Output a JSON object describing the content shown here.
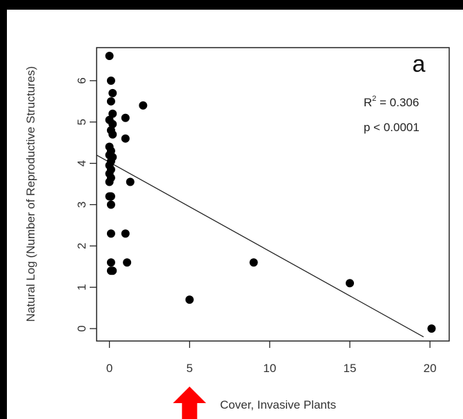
{
  "chart_data": {
    "type": "scatter",
    "panel_label": "a",
    "xlabel": "Cover, Invasive Plants",
    "ylabel": "Natural Log (Number of Reproductive Structures)",
    "xlim": [
      -0.8,
      21.2
    ],
    "ylim": [
      -0.3,
      6.8
    ],
    "x_ticks": [
      0,
      5,
      10,
      15,
      20
    ],
    "y_ticks": [
      0,
      1,
      2,
      3,
      4,
      5,
      6
    ],
    "annotation": {
      "r2_prefix": "R",
      "r2_sup": "2",
      "r2_value": " = 0.306",
      "p_text": "p < 0.0001"
    },
    "fit_line": {
      "x": [
        -0.8,
        19.6
      ],
      "y": [
        4.2,
        -0.2
      ]
    },
    "points": [
      {
        "x": 0.0,
        "y": 6.6
      },
      {
        "x": 0.1,
        "y": 6.0
      },
      {
        "x": 0.2,
        "y": 5.7
      },
      {
        "x": 0.1,
        "y": 5.5
      },
      {
        "x": 0.2,
        "y": 5.2
      },
      {
        "x": 0.0,
        "y": 5.05
      },
      {
        "x": 0.2,
        "y": 4.95
      },
      {
        "x": 0.1,
        "y": 4.8
      },
      {
        "x": 0.2,
        "y": 4.7
      },
      {
        "x": 0.0,
        "y": 4.4
      },
      {
        "x": 0.1,
        "y": 4.3
      },
      {
        "x": 0.0,
        "y": 4.2
      },
      {
        "x": 0.2,
        "y": 4.15
      },
      {
        "x": 0.1,
        "y": 4.05
      },
      {
        "x": 0.0,
        "y": 3.95
      },
      {
        "x": 0.1,
        "y": 3.85
      },
      {
        "x": 0.0,
        "y": 3.75
      },
      {
        "x": 0.1,
        "y": 3.65
      },
      {
        "x": 0.0,
        "y": 3.55
      },
      {
        "x": 0.0,
        "y": 3.2
      },
      {
        "x": 0.1,
        "y": 3.2
      },
      {
        "x": 0.1,
        "y": 3.0
      },
      {
        "x": 0.1,
        "y": 2.3
      },
      {
        "x": 0.1,
        "y": 1.6
      },
      {
        "x": 0.1,
        "y": 1.4
      },
      {
        "x": 0.2,
        "y": 1.4
      },
      {
        "x": 1.0,
        "y": 5.1
      },
      {
        "x": 2.1,
        "y": 5.4
      },
      {
        "x": 1.0,
        "y": 4.6
      },
      {
        "x": 1.3,
        "y": 3.55
      },
      {
        "x": 1.0,
        "y": 2.3
      },
      {
        "x": 1.1,
        "y": 1.6
      },
      {
        "x": 5.0,
        "y": 0.7
      },
      {
        "x": 9.0,
        "y": 1.6
      },
      {
        "x": 15.0,
        "y": 1.1
      },
      {
        "x": 20.1,
        "y": 0.0
      }
    ]
  },
  "annotation_arrow": {
    "color": "#ff0000",
    "points_to_x": 5
  }
}
